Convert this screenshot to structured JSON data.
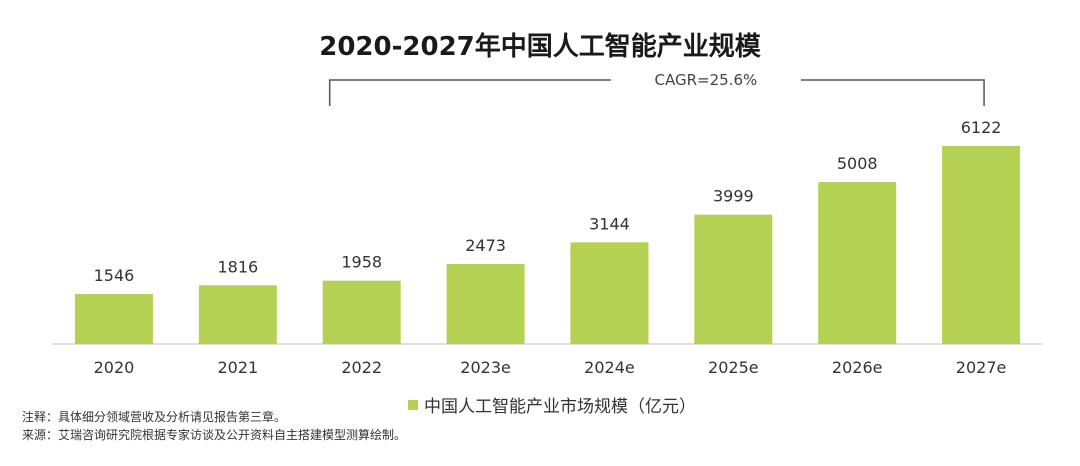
{
  "chart_data": {
    "type": "bar",
    "title": "2020-2027年中国人工智能产业规模",
    "categories": [
      "2020",
      "2021",
      "2022",
      "2023e",
      "2024e",
      "2025e",
      "2026e",
      "2027e"
    ],
    "series": [
      {
        "name": "中国人工智能产业市场规模（亿元）",
        "values": [
          1546,
          1816,
          1958,
          2473,
          3144,
          3999,
          5008,
          6122
        ]
      }
    ],
    "data_labels": [
      "1546",
      "1816",
      "1958",
      "2473",
      "3144",
      "3999",
      "5008",
      "6122"
    ],
    "annotation": {
      "text": "CAGR=25.6%",
      "from_category": "2022",
      "to_category": "2027e"
    },
    "ylim": [
      0,
      6122
    ],
    "grid": false,
    "legend_position": "bottom-center",
    "colors": {
      "bar": "#b5d154",
      "axis": "#bfbfbf",
      "bracket": "#555555"
    }
  },
  "notes": {
    "note1": "注释：具体细分领域营收及分析请见报告第三章。",
    "note2": "来源：艾瑞咨询研究院根据专家访谈及公开资料自主搭建模型测算绘制。"
  }
}
